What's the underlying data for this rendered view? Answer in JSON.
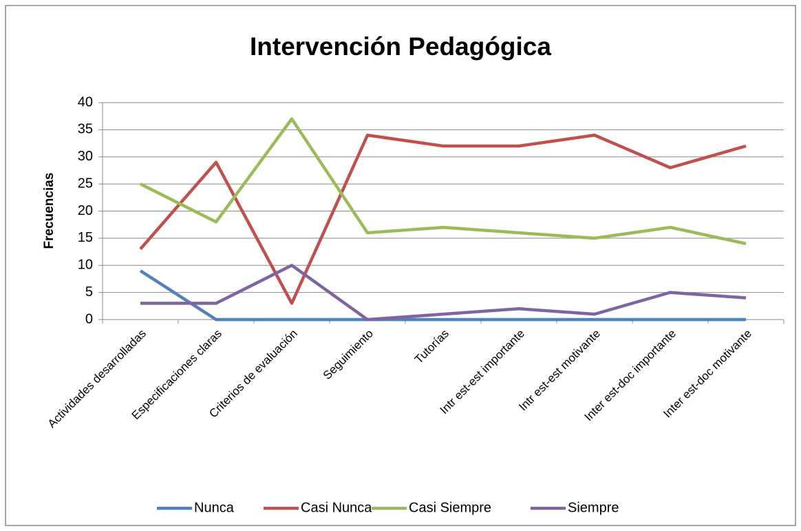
{
  "chart_data": {
    "type": "line",
    "title": "Intervención Pedagógica",
    "y_label": "Frecuencias",
    "categories": [
      "Actividades desarrolladas",
      "Especificaciones claras",
      "Criterios de evaluación",
      "Seguimiento",
      "Tutorías",
      "Intr est-est importante",
      "Intr est-est motivante",
      "Inter est-doc importante",
      "Inter est-doc motivante"
    ],
    "series": [
      {
        "name": "Nunca",
        "color": "#4f81bd",
        "values": [
          9,
          0,
          0,
          0,
          0,
          0,
          0,
          0,
          0
        ]
      },
      {
        "name": "Casi Nunca",
        "color": "#c0504d",
        "values": [
          13,
          29,
          3,
          34,
          32,
          32,
          34,
          28,
          32
        ]
      },
      {
        "name": "Casi Siempre",
        "color": "#9bbb59",
        "values": [
          25,
          18,
          37,
          16,
          17,
          16,
          15,
          17,
          14
        ]
      },
      {
        "name": "Siempre",
        "color": "#8064a2",
        "values": [
          3,
          3,
          10,
          0,
          1,
          2,
          1,
          5,
          4
        ]
      }
    ],
    "ylim": [
      0,
      40
    ],
    "yticks": [
      0,
      5,
      10,
      15,
      20,
      25,
      30,
      35,
      40
    ],
    "grid": true,
    "legend": "bottom"
  }
}
